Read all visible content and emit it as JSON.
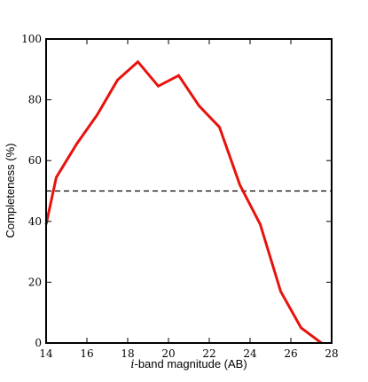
{
  "chart_data": {
    "type": "line",
    "title": "",
    "xlabel_prefix": "i",
    "xlabel_rest": "-band magnitude (AB)",
    "ylabel": "Completeness (%)",
    "xlim": [
      14,
      28
    ],
    "ylim": [
      0,
      100
    ],
    "x_ticks": [
      14,
      16,
      18,
      20,
      22,
      24,
      26,
      28
    ],
    "y_ticks": [
      0,
      20,
      40,
      60,
      80,
      100
    ],
    "grid": false,
    "series": [
      {
        "color": "#e8120c",
        "style": "solid",
        "x": [
          14.0,
          14.5,
          15.5,
          16.5,
          17.5,
          18.5,
          19.5,
          20.5,
          21.5,
          22.5,
          23.5,
          24.5,
          25.5,
          26.5,
          27.5
        ],
        "y": [
          39,
          54.5,
          65.5,
          75,
          86.5,
          92.5,
          84.5,
          88,
          78,
          71,
          52,
          39,
          17,
          5,
          0
        ]
      }
    ],
    "reference_lines": [
      {
        "orientation": "horizontal",
        "y": 50,
        "style": "dashed",
        "color": "#000000"
      }
    ]
  }
}
